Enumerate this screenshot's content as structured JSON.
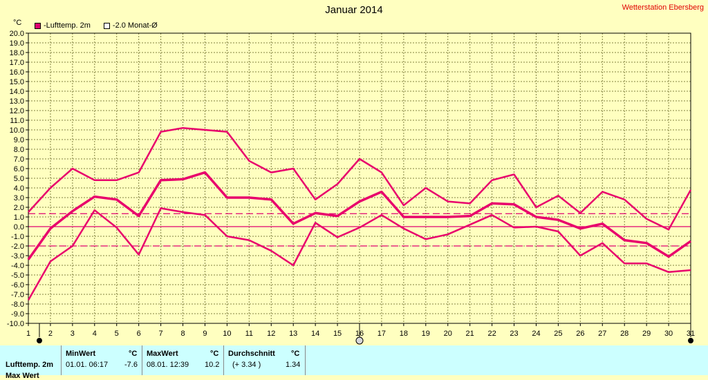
{
  "station": "Wetterstation Ebersberg",
  "chart_data": {
    "type": "line",
    "title": "Januar 2014",
    "unit_label": "°C",
    "ylim": [
      -10,
      20
    ],
    "y_step": 1,
    "y_tick_labels": [
      "-10.0",
      "-9.0",
      "-8.0",
      "-7.0",
      "-6.0",
      "-5.0",
      "-4.0",
      "-3.0",
      "-2.0",
      "-1.0",
      "0.0",
      "1.0",
      "2.0",
      "3.0",
      "4.0",
      "5.0",
      "6.0",
      "7.0",
      "8.0",
      "9.0",
      "10.0",
      "11.0",
      "12.0",
      "13.0",
      "14.0",
      "15.0",
      "16.0",
      "17.0",
      "18.0",
      "19.0",
      "20.0"
    ],
    "x": [
      1,
      2,
      3,
      4,
      5,
      6,
      7,
      8,
      9,
      10,
      11,
      12,
      13,
      14,
      15,
      16,
      17,
      18,
      19,
      20,
      21,
      22,
      23,
      24,
      25,
      26,
      27,
      28,
      29,
      30,
      31
    ],
    "x_tick_labels": [
      "1",
      "2",
      "3",
      "4",
      "5",
      "6",
      "7",
      "8",
      "9",
      "10",
      "11",
      "12",
      "13",
      "14",
      "15",
      "16",
      "17",
      "18",
      "19",
      "20",
      "21",
      "22",
      "23",
      "24",
      "25",
      "26",
      "27",
      "28",
      "29",
      "30",
      "31"
    ],
    "grid": true,
    "legend_position": "top-left",
    "legend": [
      {
        "label": "-Lufttemp. 2m",
        "swatch": "filled"
      },
      {
        "label": "-2.0 Monat-Ø",
        "swatch": "empty"
      }
    ],
    "series": [
      {
        "role": "max",
        "values": [
          1.5,
          4.0,
          6.0,
          4.8,
          4.8,
          5.6,
          9.8,
          10.2,
          10.0,
          9.8,
          6.8,
          5.6,
          6.0,
          2.8,
          4.4,
          7.0,
          5.6,
          2.2,
          4.0,
          2.6,
          2.4,
          4.8,
          5.4,
          2.0,
          3.2,
          1.4,
          3.6,
          2.8,
          0.8,
          -0.3,
          3.8
        ]
      },
      {
        "role": "mean",
        "values": [
          -3.4,
          -0.2,
          1.6,
          3.1,
          2.8,
          1.1,
          4.8,
          4.9,
          5.6,
          3.0,
          3.0,
          2.8,
          0.3,
          1.4,
          1.1,
          2.6,
          3.6,
          1.0,
          1.0,
          1.0,
          1.1,
          2.4,
          2.3,
          1.0,
          0.7,
          -0.2,
          0.3,
          -1.4,
          -1.7,
          -3.1,
          -1.5
        ]
      },
      {
        "role": "min",
        "values": [
          -7.6,
          -3.6,
          -2.0,
          1.7,
          -0.1,
          -2.9,
          1.9,
          1.5,
          1.2,
          -1.0,
          -1.4,
          -2.5,
          -4.0,
          0.4,
          -1.1,
          -0.1,
          1.2,
          -0.2,
          -1.3,
          -0.8,
          0.2,
          1.2,
          -0.1,
          0.0,
          -0.5,
          -3.0,
          -1.7,
          -3.8,
          -3.8,
          -4.7,
          -4.5
        ]
      }
    ],
    "reference_lines": [
      {
        "y": 1.34,
        "style": "dashed"
      },
      {
        "y": -2.0,
        "style": "dashed"
      },
      {
        "y": 0.0,
        "style": "solid"
      }
    ],
    "markers": [
      {
        "x": 1.5,
        "type": "filled"
      },
      {
        "x": 16,
        "type": "open"
      },
      {
        "x": 31,
        "type": "filled"
      }
    ]
  },
  "stats": {
    "row_label": "Lufttemp. 2m",
    "row_label_2": "Max Wert",
    "min_header": "MinWert",
    "min_unit": "°C",
    "min_time": "01.01.  06:17",
    "min_value": "-7.6",
    "max_header": "MaxWert",
    "max_unit": "°C",
    "max_time": "08.01.  12:39",
    "max_value": "10.2",
    "avg_header": "Durchschnitt",
    "avg_unit": "°C",
    "avg_diff": "(+ 3.34 )",
    "avg_value": "1.34"
  },
  "colors": {
    "background": "#ffffc0",
    "series": "#e8006c",
    "grid": "#808040",
    "reference": "#e00070",
    "stats_bg": "#ccffff",
    "station_text": "#e00000"
  }
}
